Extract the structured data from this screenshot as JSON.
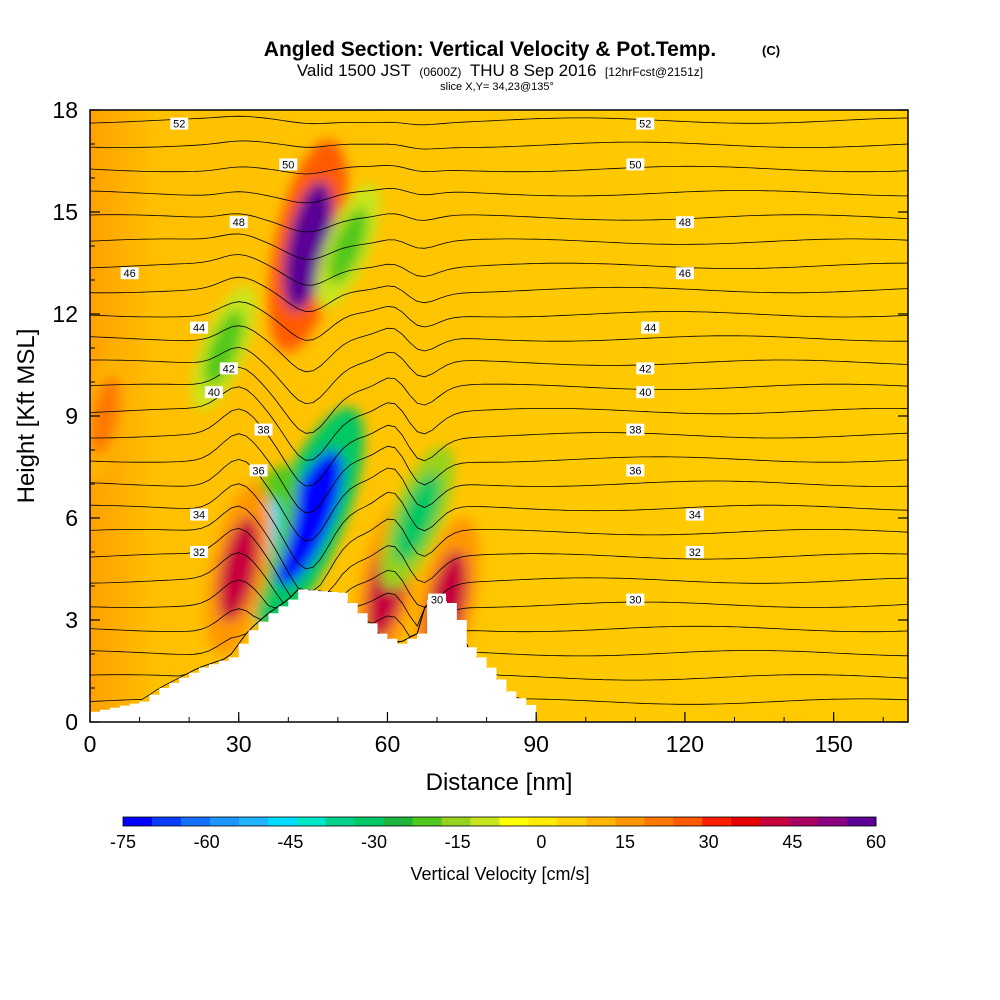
{
  "chart_data": {
    "type": "heatmap",
    "title": {
      "main": "Angled Section: Vertical Velocity & Pot.Temp.",
      "copyright": "(C)",
      "valid_prefix": "Valid 1500 JST",
      "valid_utc": "(0600Z)",
      "valid_date": "THU 8 Sep 2016",
      "forecast": "[12hrFcst@2151z]",
      "slice": "slice X,Y= 34,23@135°"
    },
    "xlabel": "Distance [nm]",
    "ylabel": "Height [Kft MSL]",
    "xlim": [
      0,
      165
    ],
    "ylim": [
      0,
      18
    ],
    "xticks": [
      0,
      30,
      60,
      90,
      120,
      150
    ],
    "yticks": [
      0,
      3,
      6,
      9,
      12,
      15,
      18
    ],
    "colorbar": {
      "label": "Vertical Velocity [cm/s]",
      "ticks": [
        -75,
        -60,
        -45,
        -30,
        -15,
        0,
        15,
        30,
        45,
        60
      ],
      "min": -75,
      "max": 60,
      "colors": [
        "#0000ff",
        "#0a3cff",
        "#1470ff",
        "#1e96ff",
        "#1eb4ff",
        "#00dcff",
        "#00e6c8",
        "#00d28c",
        "#00c864",
        "#1eb43c",
        "#50c81e",
        "#96d21e",
        "#c8e61e",
        "#ffff00",
        "#ffeb00",
        "#ffd200",
        "#ffb400",
        "#ff9600",
        "#ff7800",
        "#ff5a00",
        "#ff1e00",
        "#e60000",
        "#c8003c",
        "#aa0064",
        "#8c0082",
        "#5a0096"
      ]
    },
    "vertical_velocity_features": [
      {
        "x": 44,
        "y": 14,
        "value": 60
      },
      {
        "x": 44,
        "y": 6,
        "value": -70
      },
      {
        "x": 33,
        "y": 5,
        "value": -45
      },
      {
        "x": 30,
        "y": 4.5,
        "value": 40
      },
      {
        "x": 60,
        "y": 4,
        "value": 40
      },
      {
        "x": 66,
        "y": 6,
        "value": -30
      },
      {
        "x": 72,
        "y": 3.5,
        "value": 40
      },
      {
        "x": 27,
        "y": 11,
        "value": -20
      },
      {
        "x": 52,
        "y": 14,
        "value": -20
      },
      {
        "x": 3,
        "y": 9,
        "value": 20
      }
    ],
    "terrain": [
      [
        0,
        0.3
      ],
      [
        10,
        0.6
      ],
      [
        14,
        1
      ],
      [
        18,
        1.3
      ],
      [
        22,
        1.6
      ],
      [
        28,
        1.9
      ],
      [
        32,
        2.7
      ],
      [
        36,
        3.2
      ],
      [
        40,
        3.6
      ],
      [
        42,
        3.9
      ],
      [
        50,
        3.8
      ],
      [
        52,
        3.5
      ],
      [
        54,
        3.2
      ],
      [
        58,
        2.6
      ],
      [
        62,
        2.3
      ],
      [
        66,
        2.6
      ],
      [
        68,
        3.6
      ],
      [
        72,
        3.5
      ],
      [
        74,
        3
      ],
      [
        76,
        2.2
      ],
      [
        80,
        1.6
      ],
      [
        84,
        0.9
      ],
      [
        88,
        0.5
      ],
      [
        90,
        0
      ]
    ],
    "potential_temperature_contours": [
      {
        "label": "52",
        "height": 17.6
      },
      {
        "label": "50",
        "height": 16.4
      },
      {
        "label": "48",
        "height": 14.7
      },
      {
        "label": "46",
        "height": 13.2
      },
      {
        "label": "44",
        "height": 11.6
      },
      {
        "label": "42",
        "height": 10.4
      },
      {
        "label": "40",
        "height": 9.7
      },
      {
        "label": "38",
        "height": 8.6
      },
      {
        "label": "36",
        "height": 7.4
      },
      {
        "label": "34",
        "height": 6.1
      },
      {
        "label": "32",
        "height": 5.0
      },
      {
        "label": "30",
        "height": 3.6
      }
    ]
  }
}
